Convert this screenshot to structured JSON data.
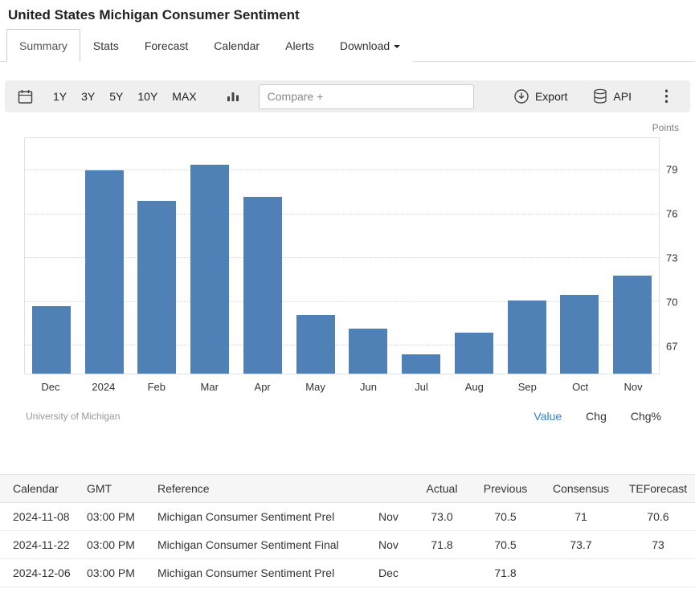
{
  "page": {
    "title": "United States Michigan Consumer Sentiment",
    "points_label": "Points"
  },
  "tabs": [
    {
      "label": "Summary",
      "active": true
    },
    {
      "label": "Stats",
      "active": false
    },
    {
      "label": "Forecast",
      "active": false
    },
    {
      "label": "Calendar",
      "active": false
    },
    {
      "label": "Alerts",
      "active": false
    },
    {
      "label": "Download",
      "active": false,
      "has_caret": true
    }
  ],
  "toolbar": {
    "ranges": [
      "1Y",
      "3Y",
      "5Y",
      "10Y",
      "MAX"
    ],
    "compare_placeholder": "Compare +",
    "export_label": "Export",
    "api_label": "API"
  },
  "chart_data": {
    "type": "bar",
    "title": "United States Michigan Consumer Sentiment",
    "categories": [
      "Dec",
      "2024",
      "Feb",
      "Mar",
      "Apr",
      "May",
      "Jun",
      "Jul",
      "Aug",
      "Sep",
      "Oct",
      "Nov"
    ],
    "values": [
      69.7,
      79.0,
      76.9,
      79.4,
      77.2,
      69.1,
      68.2,
      66.4,
      67.9,
      70.1,
      70.5,
      71.8
    ],
    "unit": "Points",
    "yticks": [
      67,
      70,
      73,
      76,
      79
    ],
    "ylim": [
      65.1,
      81.2
    ],
    "xlabel": "",
    "ylabel": "Points",
    "y_axis_side": "right",
    "grid": "horizontal-dotted",
    "legend_position": "none",
    "bar_color": "#4f81b6"
  },
  "chart_footer": {
    "source": "University of Michigan",
    "modes": [
      {
        "label": "Value",
        "active": true
      },
      {
        "label": "Chg",
        "active": false
      },
      {
        "label": "Chg%",
        "active": false
      }
    ]
  },
  "table": {
    "headers": [
      "Calendar",
      "GMT",
      "Reference",
      "",
      "Actual",
      "Previous",
      "Consensus",
      "TEForecast"
    ],
    "rows": [
      [
        "2024-11-08",
        "03:00 PM",
        "Michigan Consumer Sentiment Prel",
        "Nov",
        "73.0",
        "70.5",
        "71",
        "70.6"
      ],
      [
        "2024-11-22",
        "03:00 PM",
        "Michigan Consumer Sentiment Final",
        "Nov",
        "71.8",
        "70.5",
        "73.7",
        "73"
      ],
      [
        "2024-12-06",
        "03:00 PM",
        "Michigan Consumer Sentiment Prel",
        "Dec",
        "",
        "71.8",
        "",
        ""
      ]
    ]
  },
  "colors": {
    "accent_blue": "#2f7fd0",
    "bar": "#4f81b6",
    "toolbar_bg": "#efefef"
  }
}
